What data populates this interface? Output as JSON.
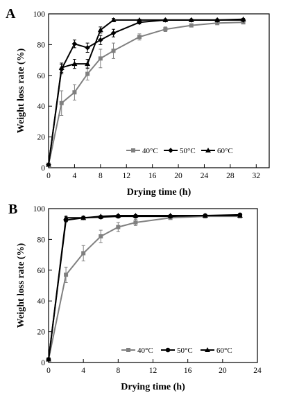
{
  "colors": {
    "gray_series": "#808080",
    "black_series": "#000000"
  },
  "chart_data": [
    {
      "type": "line",
      "panel_label": "A",
      "xlabel": "Drying time (h)",
      "ylabel": "Weight loss rate (%)",
      "xlim": [
        0,
        34
      ],
      "ylim": [
        0,
        100
      ],
      "xticks": [
        0,
        4,
        8,
        12,
        16,
        20,
        24,
        28,
        32
      ],
      "yticks": [
        0,
        20,
        40,
        60,
        80,
        100
      ],
      "grid": false,
      "legend_position": "bottom-right",
      "legend_layout": "horizontal",
      "series": [
        {
          "name": "40°C",
          "color": "#808080",
          "marker": "square",
          "x": [
            0,
            2,
            4,
            6,
            8,
            10,
            14,
            18,
            22,
            26,
            30
          ],
          "y": [
            2,
            42,
            49,
            61,
            71,
            76,
            85,
            90,
            92.5,
            94,
            94.5
          ],
          "err": [
            0,
            8,
            5,
            4,
            6,
            5,
            2,
            1.5,
            1,
            1,
            1
          ]
        },
        {
          "name": "50°C",
          "color": "#000000",
          "marker": "diamond",
          "x": [
            0,
            2,
            4,
            6,
            8,
            10,
            14,
            18,
            22,
            26,
            30
          ],
          "y": [
            2,
            64,
            80.5,
            78,
            83,
            87.5,
            94.5,
            96,
            96,
            96,
            96
          ],
          "err": [
            0,
            3,
            2.5,
            3,
            3,
            2.5,
            1,
            0.5,
            0.5,
            0.5,
            0.5
          ]
        },
        {
          "name": "60°C",
          "color": "#000000",
          "marker": "triangle",
          "x": [
            0,
            2,
            4,
            6,
            8,
            10,
            14,
            18,
            22,
            26,
            30
          ],
          "y": [
            2,
            65,
            67.5,
            67.5,
            89.5,
            96,
            96,
            96,
            96,
            96,
            96.5
          ],
          "err": [
            0,
            3,
            3,
            3,
            2,
            1,
            0.5,
            0.5,
            0.5,
            0.5,
            0.5
          ]
        }
      ]
    },
    {
      "type": "line",
      "panel_label": "B",
      "xlabel": "Drying time (h)",
      "ylabel": "Weight loss rate (%)",
      "xlim": [
        0,
        24
      ],
      "ylim": [
        0,
        100
      ],
      "xticks": [
        0,
        4,
        8,
        12,
        16,
        20,
        24
      ],
      "yticks": [
        0,
        20,
        40,
        60,
        80,
        100
      ],
      "grid": false,
      "legend_position": "bottom-right",
      "legend_layout": "horizontal",
      "series": [
        {
          "name": "40°C",
          "color": "#808080",
          "marker": "square",
          "x": [
            0,
            2,
            4,
            6,
            8,
            10,
            14,
            18,
            22
          ],
          "y": [
            2,
            57,
            71,
            82,
            88,
            91,
            94,
            95,
            95
          ],
          "err": [
            0,
            5,
            5,
            4,
            3,
            2,
            1,
            1,
            1
          ]
        },
        {
          "name": "50°C",
          "color": "#000000",
          "marker": "circle",
          "x": [
            0,
            2,
            4,
            6,
            8,
            10,
            14,
            18,
            22
          ],
          "y": [
            2,
            92.5,
            94,
            94.5,
            95,
            95,
            95,
            95.5,
            96
          ],
          "err": [
            0,
            1,
            1,
            1,
            1,
            1,
            0.5,
            0.5,
            0.5
          ]
        },
        {
          "name": "60°C",
          "color": "#000000",
          "marker": "triangle",
          "x": [
            0,
            2,
            4,
            6,
            8,
            10,
            14,
            18,
            22
          ],
          "y": [
            2,
            94,
            94,
            95,
            95.5,
            95.5,
            95.5,
            95.5,
            95.5
          ],
          "err": [
            0,
            1,
            1,
            0.5,
            0.5,
            0.5,
            0.5,
            0.5,
            0.5
          ]
        }
      ]
    }
  ]
}
